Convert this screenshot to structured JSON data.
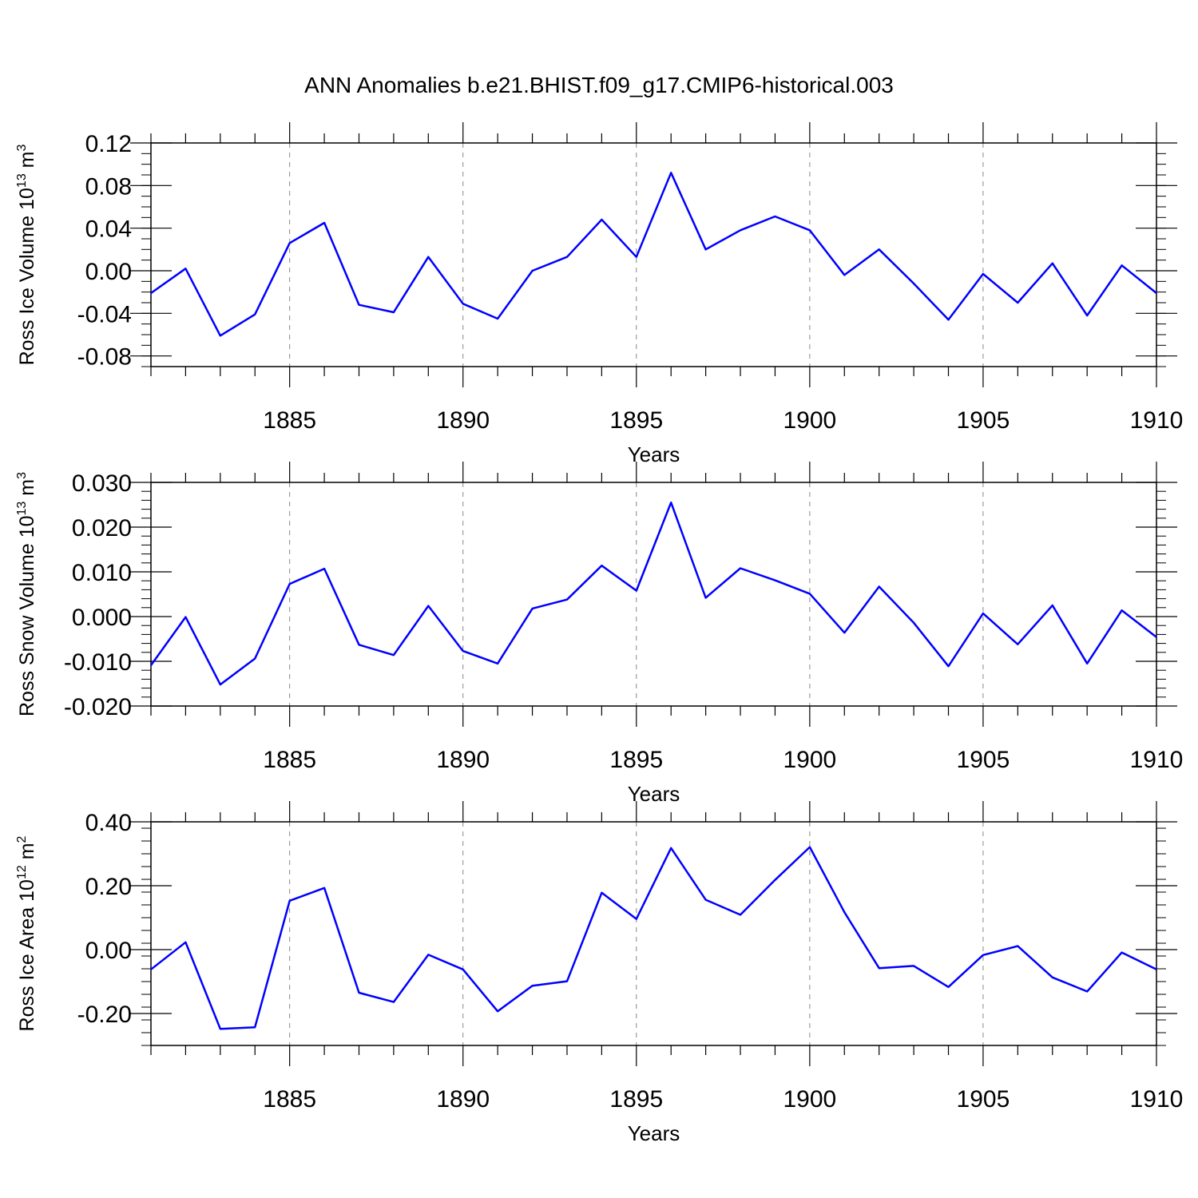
{
  "figure": {
    "title": "ANN Anomalies b.e21.BHIST.f09_g17.CMIP6-historical.003"
  },
  "colors": {
    "series_line": "#0000ff",
    "axes": "#000000",
    "grid": "#888888"
  },
  "chart_data": [
    {
      "type": "line",
      "title": "",
      "xlabel": "Years",
      "ylabel": "Ross Ice Volume 10",
      "ylabel_exponent": "13",
      "ylabel_unit": "m",
      "ylabel_unit_exponent": "3",
      "xlim": [
        1881,
        1910
      ],
      "ylim": [
        -0.09,
        0.12
      ],
      "x_ticks": [
        "1885",
        "1890",
        "1895",
        "1900",
        "1905",
        "1910"
      ],
      "x_tick_values": [
        1885,
        1890,
        1895,
        1900,
        1905,
        1910
      ],
      "y_ticks": [
        "-0.08",
        "-0.04",
        "0.00",
        "0.04",
        "0.08",
        "0.12"
      ],
      "y_tick_values": [
        -0.08,
        -0.04,
        0.0,
        0.04,
        0.08,
        0.12
      ],
      "y_minor_step": 0.01,
      "grid": "vertical dashed at labeled years",
      "x": [
        1881,
        1882,
        1883,
        1884,
        1885,
        1886,
        1887,
        1888,
        1889,
        1890,
        1891,
        1892,
        1893,
        1894,
        1895,
        1896,
        1897,
        1898,
        1899,
        1900,
        1901,
        1902,
        1903,
        1904,
        1905,
        1906,
        1907,
        1908,
        1909,
        1910
      ],
      "values": [
        -0.021,
        0.002,
        -0.061,
        -0.041,
        0.026,
        0.045,
        -0.032,
        -0.039,
        0.013,
        -0.031,
        -0.045,
        0.0,
        0.013,
        0.048,
        0.013,
        0.092,
        0.02,
        0.038,
        0.051,
        0.038,
        -0.004,
        0.02,
        -0.012,
        -0.046,
        -0.003,
        -0.03,
        0.007,
        -0.042,
        0.005,
        -0.021
      ]
    },
    {
      "type": "line",
      "title": "",
      "xlabel": "Years",
      "ylabel": "Ross Snow Volume 10",
      "ylabel_exponent": "13",
      "ylabel_unit": "m",
      "ylabel_unit_exponent": "3",
      "xlim": [
        1881,
        1910
      ],
      "ylim": [
        -0.02,
        0.03
      ],
      "x_ticks": [
        "1885",
        "1890",
        "1895",
        "1900",
        "1905",
        "1910"
      ],
      "x_tick_values": [
        1885,
        1890,
        1895,
        1900,
        1905,
        1910
      ],
      "y_ticks": [
        "-0.020",
        "-0.010",
        "0.000",
        "0.010",
        "0.020",
        "0.030"
      ],
      "y_tick_values": [
        -0.02,
        -0.01,
        0.0,
        0.01,
        0.02,
        0.03
      ],
      "y_minor_step": 0.002,
      "grid": "vertical dashed at labeled years",
      "x": [
        1881,
        1882,
        1883,
        1884,
        1885,
        1886,
        1887,
        1888,
        1889,
        1890,
        1891,
        1892,
        1893,
        1894,
        1895,
        1896,
        1897,
        1898,
        1899,
        1900,
        1901,
        1902,
        1903,
        1904,
        1905,
        1906,
        1907,
        1908,
        1909,
        1910
      ],
      "values": [
        -0.0109,
        -0.0001,
        -0.0152,
        -0.0094,
        0.0073,
        0.0107,
        -0.0063,
        -0.0086,
        0.0024,
        -0.0077,
        -0.0105,
        0.0018,
        0.0038,
        0.0114,
        0.0058,
        0.0255,
        0.0042,
        0.0108,
        0.0081,
        0.0051,
        -0.0036,
        0.0067,
        -0.0014,
        -0.0111,
        0.0007,
        -0.0062,
        0.0025,
        -0.0105,
        0.0014,
        -0.0046
      ]
    },
    {
      "type": "line",
      "title": "",
      "xlabel": "Years",
      "ylabel": "Ross Ice Area 10",
      "ylabel_exponent": "12",
      "ylabel_unit": "m",
      "ylabel_unit_exponent": "2",
      "xlim": [
        1881,
        1910
      ],
      "ylim": [
        -0.3,
        0.4
      ],
      "x_ticks": [
        "1885",
        "1890",
        "1895",
        "1900",
        "1905",
        "1910"
      ],
      "x_tick_values": [
        1885,
        1890,
        1895,
        1900,
        1905,
        1910
      ],
      "y_ticks": [
        "-0.20",
        "0.00",
        "0.20",
        "0.40"
      ],
      "y_tick_values": [
        -0.2,
        0.0,
        0.2,
        0.4
      ],
      "y_minor_step": 0.04,
      "grid": "vertical dashed at labeled years",
      "x": [
        1881,
        1882,
        1883,
        1884,
        1885,
        1886,
        1887,
        1888,
        1889,
        1890,
        1891,
        1892,
        1893,
        1894,
        1895,
        1896,
        1897,
        1898,
        1899,
        1900,
        1901,
        1902,
        1903,
        1904,
        1905,
        1906,
        1907,
        1908,
        1909,
        1910
      ],
      "values": [
        -0.062,
        0.023,
        -0.248,
        -0.243,
        0.153,
        0.193,
        -0.135,
        -0.164,
        -0.016,
        -0.062,
        -0.193,
        -0.113,
        -0.099,
        0.178,
        0.096,
        0.318,
        0.156,
        0.109,
        0.218,
        0.321,
        0.117,
        -0.058,
        -0.051,
        -0.117,
        -0.017,
        0.011,
        -0.087,
        -0.131,
        -0.009,
        -0.062
      ]
    }
  ]
}
